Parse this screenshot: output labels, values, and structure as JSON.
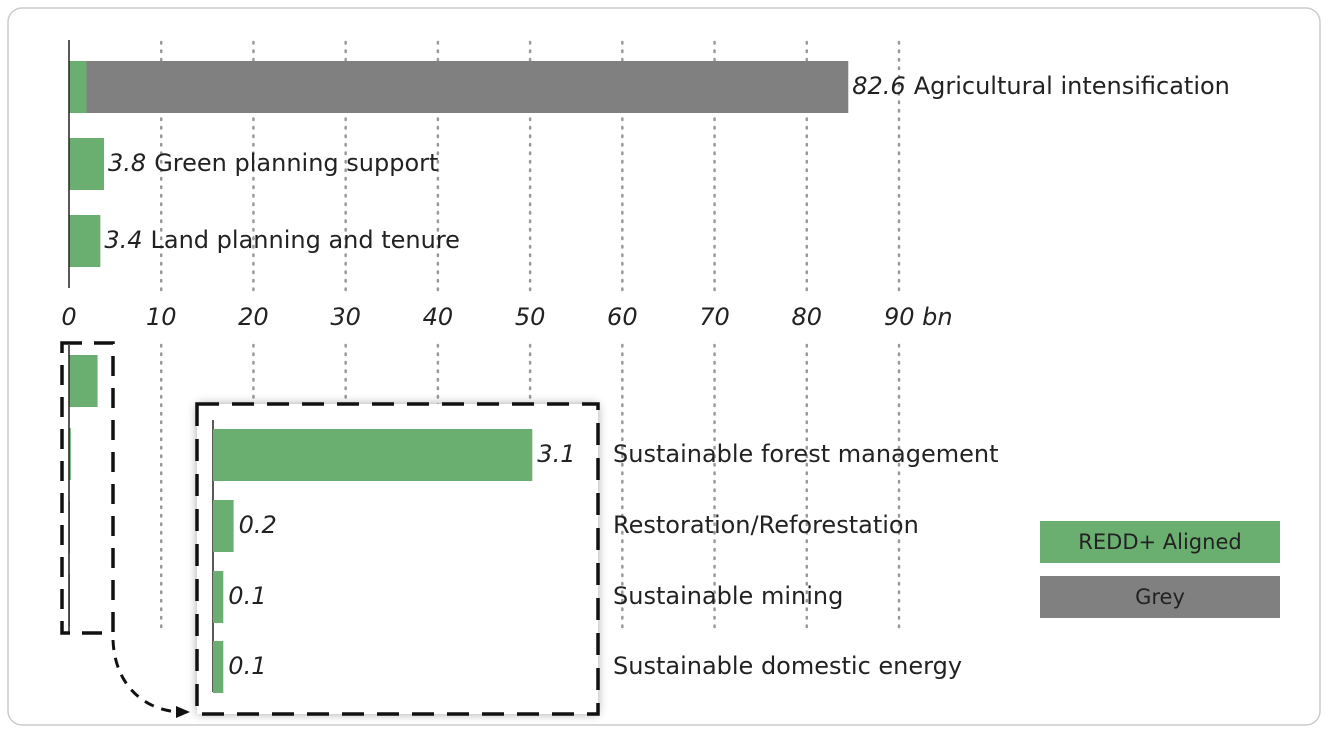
{
  "chart_data": {
    "type": "bar",
    "categories": [
      "Agricultural intensification",
      "Green planning support",
      "Land planning and tenure",
      "Sustainable forest management",
      "Restoration/Reforestation",
      "Sustainable mining",
      "Sustainable domestic energy"
    ],
    "series": [
      {
        "name": "REDD+ Aligned",
        "color": "#6aaf70",
        "values": [
          1.9,
          3.8,
          3.4,
          3.1,
          0.2,
          0.1,
          0.1
        ]
      },
      {
        "name": "Grey",
        "color": "#808080",
        "values": [
          82.6,
          null,
          null,
          null,
          null,
          null,
          null
        ]
      }
    ],
    "xlim": [
      0,
      90
    ],
    "xticks": [
      0,
      10,
      20,
      30,
      40,
      50,
      60,
      70,
      80,
      {
        "value": 90,
        "label": "90 bn"
      }
    ],
    "grid": true
  }
}
